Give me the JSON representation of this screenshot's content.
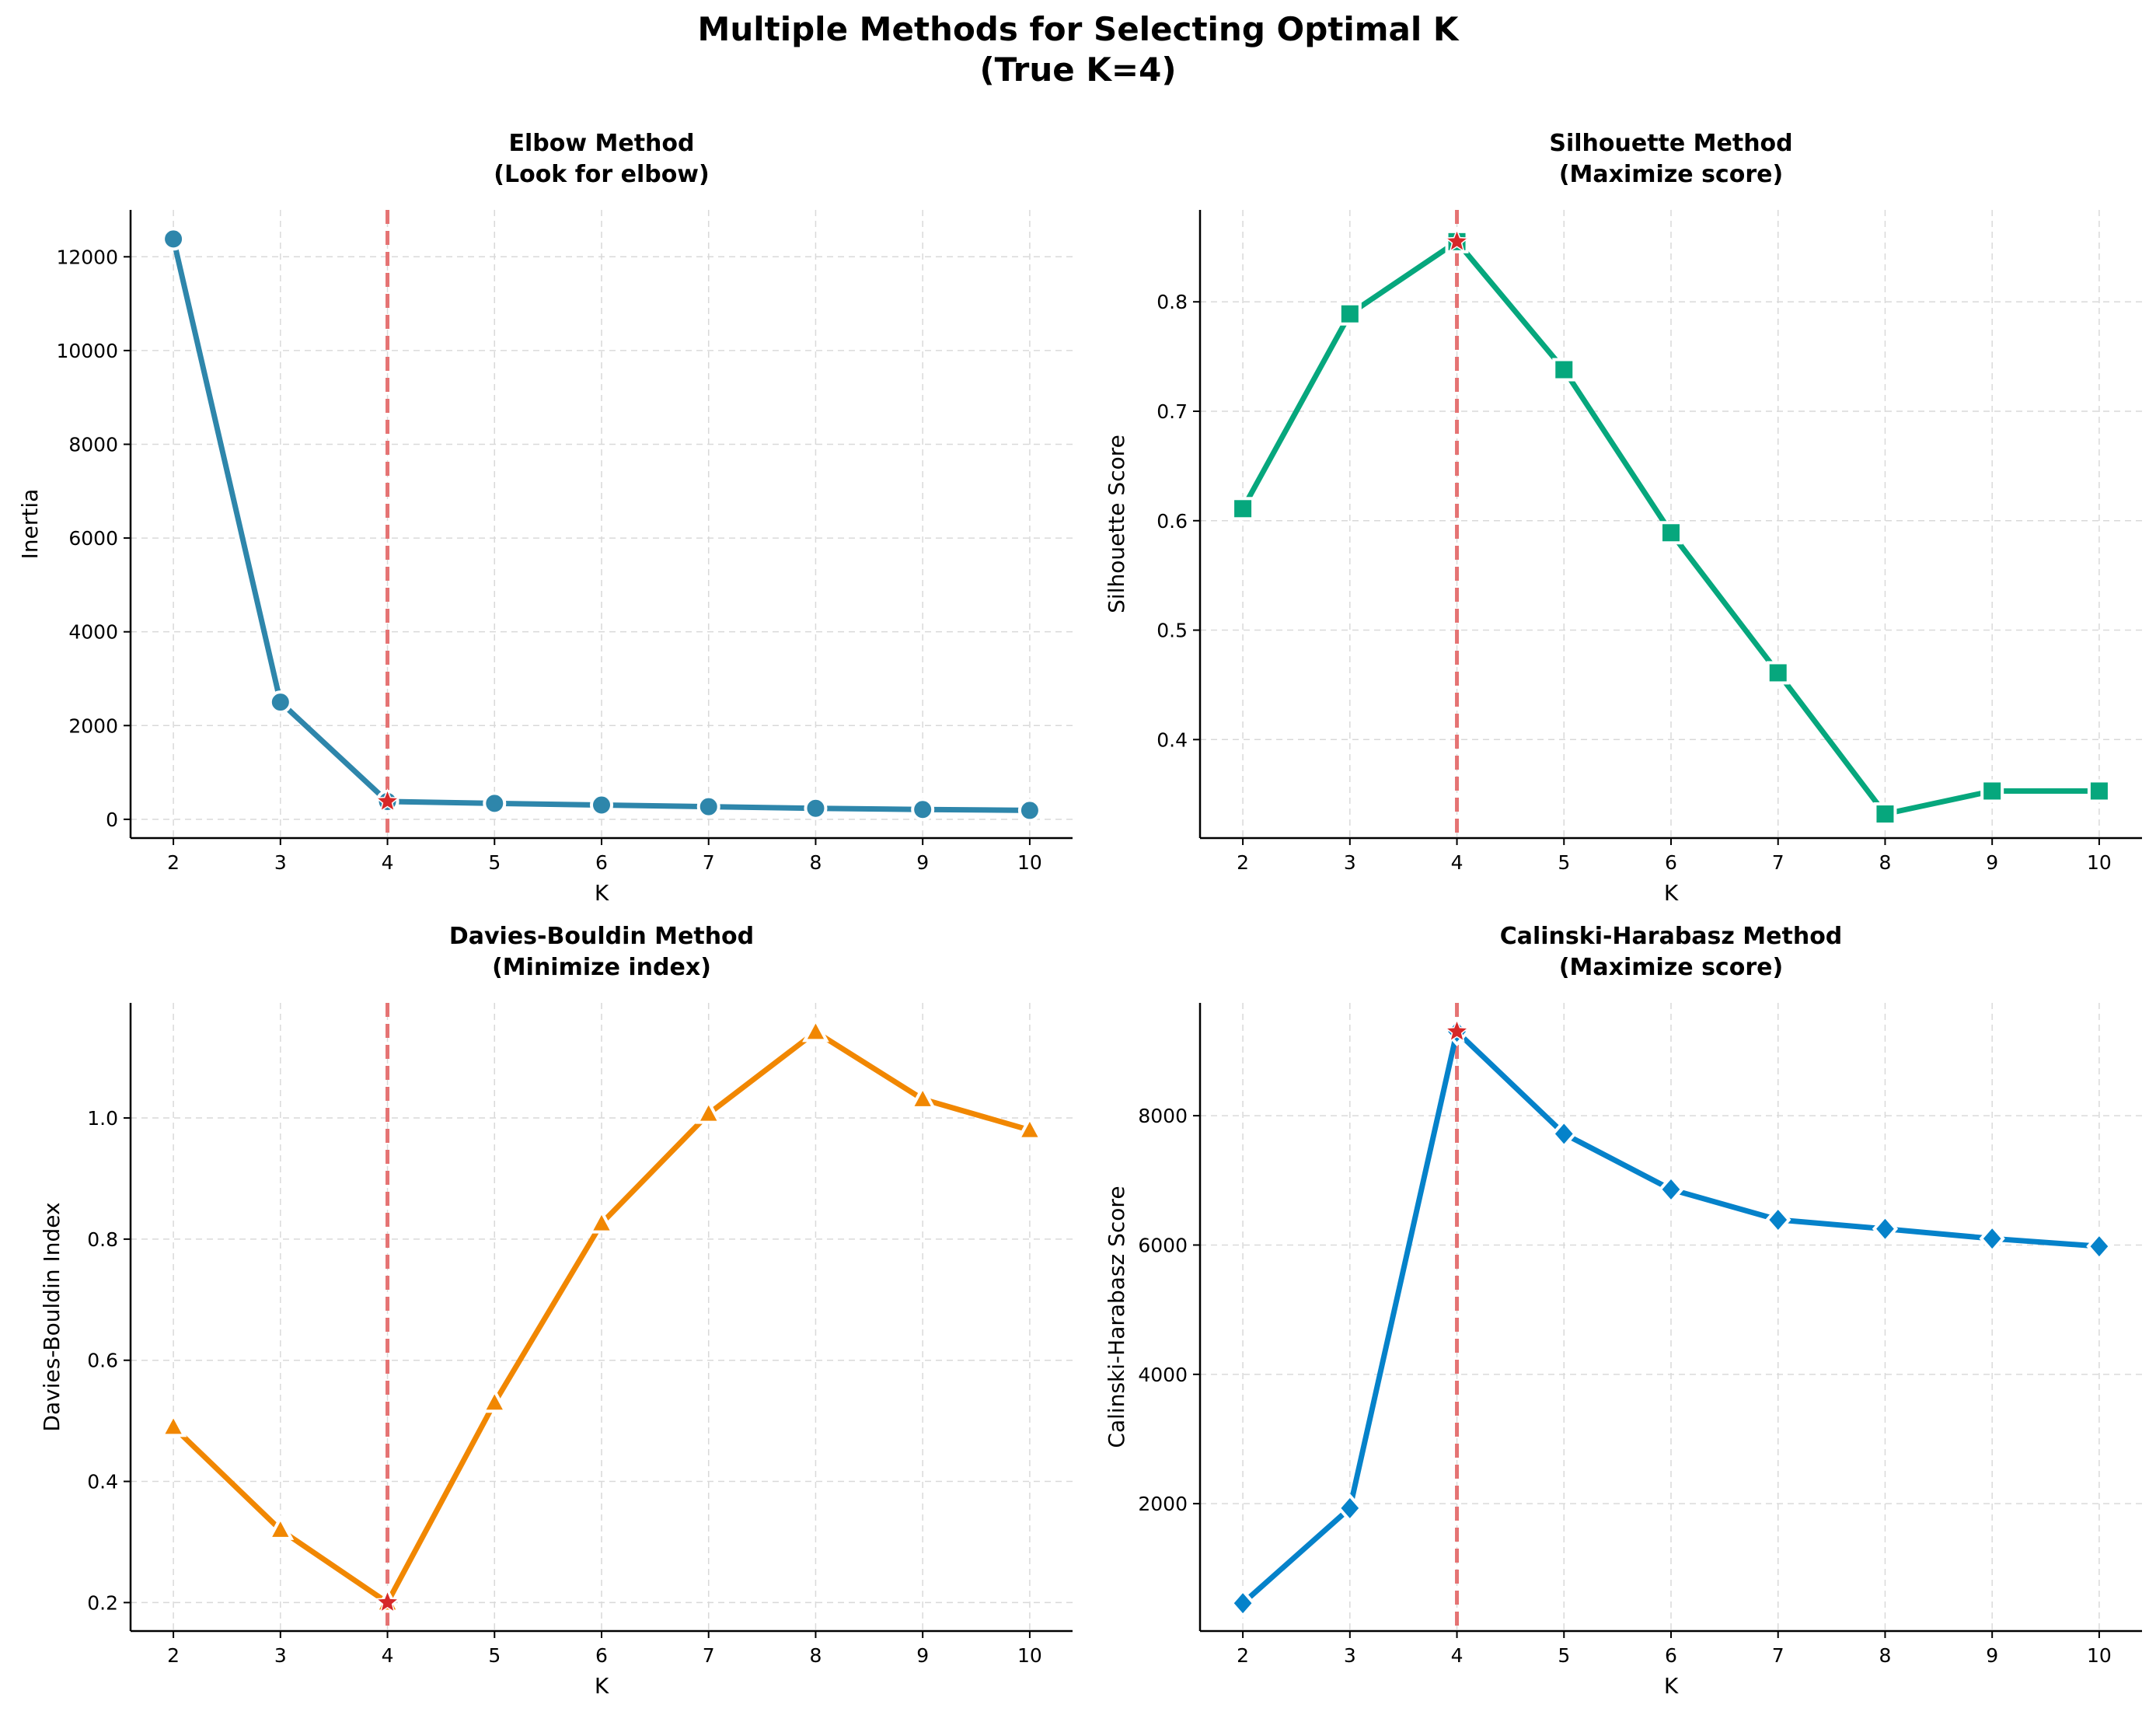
{
  "figure": {
    "title_line1": "Multiple Methods for Selecting Optimal K",
    "title_line2": "(True K=4)"
  },
  "colors": {
    "elbow": "#2E86AB",
    "silhouette": "#06A77D",
    "davies": "#F18701",
    "calinski": "#0582CA",
    "true_k_line": "#E57373",
    "star": "#D62828"
  },
  "chart_data": [
    {
      "type": "line",
      "title_line1": "Elbow Method",
      "title_line2": "(Look for elbow)",
      "xlabel": "K",
      "ylabel": "Inertia",
      "x": [
        2,
        3,
        4,
        5,
        6,
        7,
        8,
        9,
        10
      ],
      "series": [
        {
          "values": [
            12380,
            2500,
            380,
            340,
            305,
            270,
            235,
            210,
            190
          ],
          "marker": "circle"
        }
      ],
      "xticks": [
        2,
        3,
        4,
        5,
        6,
        7,
        8,
        9,
        10
      ],
      "yticks": [
        0,
        2000,
        4000,
        6000,
        8000,
        10000,
        12000
      ],
      "ytick_labels": [
        "0",
        "2000",
        "4000",
        "6000",
        "8000",
        "10000",
        "12000"
      ],
      "xlim": [
        1.6,
        10.4
      ],
      "ylim": [
        -400,
        13000
      ],
      "true_k": 4,
      "highlight": {
        "x": 4,
        "y": 380
      },
      "grid": true
    },
    {
      "type": "line",
      "title_line1": "Silhouette Method",
      "title_line2": "(Maximize score)",
      "xlabel": "K",
      "ylabel": "Silhouette Score",
      "x": [
        2,
        3,
        4,
        5,
        6,
        7,
        8,
        9,
        10
      ],
      "series": [
        {
          "values": [
            0.611,
            0.789,
            0.855,
            0.738,
            0.589,
            0.461,
            0.332,
            0.353,
            0.353
          ],
          "marker": "square"
        }
      ],
      "xticks": [
        2,
        3,
        4,
        5,
        6,
        7,
        8,
        9,
        10
      ],
      "yticks": [
        0.4,
        0.5,
        0.6,
        0.7,
        0.8
      ],
      "ytick_labels": [
        "0.4",
        "0.5",
        "0.6",
        "0.7",
        "0.8"
      ],
      "xlim": [
        1.6,
        10.4
      ],
      "ylim": [
        0.31,
        0.884
      ],
      "true_k": 4,
      "highlight": {
        "x": 4,
        "y": 0.855
      },
      "grid": true
    },
    {
      "type": "line",
      "title_line1": "Davies-Bouldin Method",
      "title_line2": "(Minimize index)",
      "xlabel": "K",
      "ylabel": "Davies-Bouldin Index",
      "x": [
        2,
        3,
        4,
        5,
        6,
        7,
        8,
        9,
        10
      ],
      "series": [
        {
          "values": [
            0.49,
            0.32,
            0.2,
            0.53,
            0.826,
            1.007,
            1.142,
            1.031,
            0.98
          ],
          "marker": "triangle"
        }
      ],
      "xticks": [
        2,
        3,
        4,
        5,
        6,
        7,
        8,
        9,
        10
      ],
      "yticks": [
        0.2,
        0.4,
        0.6,
        0.8,
        1.0
      ],
      "ytick_labels": [
        "0.2",
        "0.4",
        "0.6",
        "0.8",
        "1.0"
      ],
      "xlim": [
        1.6,
        10.4
      ],
      "ylim": [
        0.153,
        1.19
      ],
      "true_k": 4,
      "highlight": {
        "x": 4,
        "y": 0.2
      },
      "grid": true
    },
    {
      "type": "line",
      "title_line1": "Calinski-Harabasz Method",
      "title_line2": "(Maximize score)",
      "xlabel": "K",
      "ylabel": "Calinski-Harabasz Score",
      "x": [
        2,
        3,
        4,
        5,
        6,
        7,
        8,
        9,
        10
      ],
      "series": [
        {
          "values": [
            460,
            1930,
            9300,
            7720,
            6860,
            6390,
            6250,
            6100,
            5980
          ],
          "marker": "diamond"
        }
      ],
      "xticks": [
        2,
        3,
        4,
        5,
        6,
        7,
        8,
        9,
        10
      ],
      "yticks": [
        2000,
        4000,
        6000,
        8000
      ],
      "ytick_labels": [
        "2000",
        "4000",
        "6000",
        "8000"
      ],
      "xlim": [
        1.6,
        10.4
      ],
      "ylim": [
        30,
        9745
      ],
      "true_k": 4,
      "highlight": {
        "x": 4,
        "y": 9300
      },
      "grid": true
    }
  ]
}
